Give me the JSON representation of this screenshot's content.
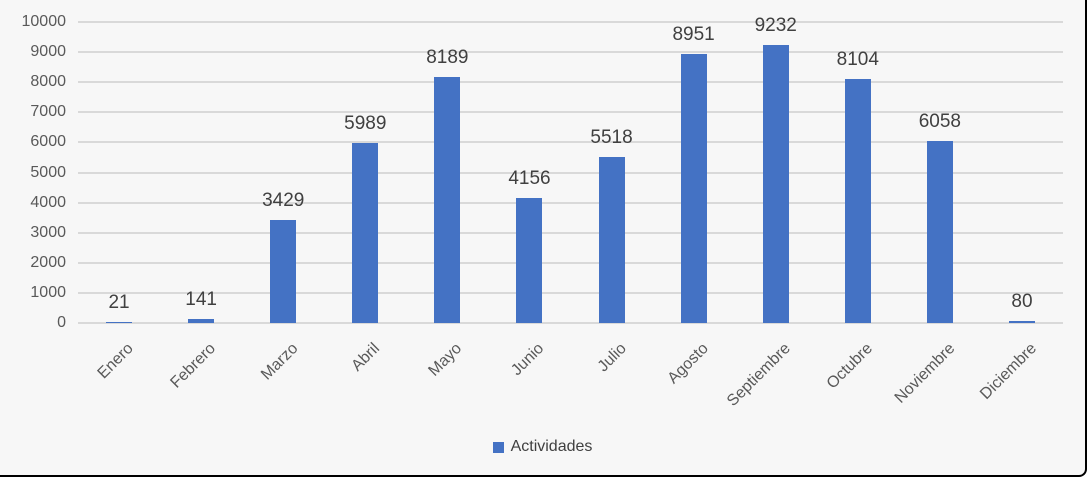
{
  "chart_data": {
    "type": "bar",
    "title": "",
    "xlabel": "",
    "ylabel": "",
    "categories": [
      "Enero",
      "Febrero",
      "Marzo",
      "Abril",
      "Mayo",
      "Junio",
      "Julio",
      "Agosto",
      "Septiembre",
      "Octubre",
      "Noviembre",
      "Diciembre"
    ],
    "series": [
      {
        "name": "Actividades",
        "values": [
          21,
          141,
          3429,
          5989,
          8189,
          4156,
          5518,
          8951,
          9232,
          8104,
          6058,
          80
        ]
      }
    ],
    "ylim": [
      0,
      10000
    ],
    "ytick_step": 1000,
    "ytick_labels": [
      "0",
      "1000",
      "2000",
      "3000",
      "4000",
      "5000",
      "6000",
      "7000",
      "8000",
      "9000",
      "10000"
    ],
    "grid": true,
    "data_labels": true,
    "legend_position": "bottom",
    "x_label_rotation_deg": 45,
    "colors": {
      "bar": "#4472C4",
      "gridline": "#D9D9D9",
      "axis_text": "#595959",
      "value_label_text": "#404040",
      "legend_text": "#404040",
      "background": "#F7F7F7",
      "frame_border": "#000000"
    }
  }
}
